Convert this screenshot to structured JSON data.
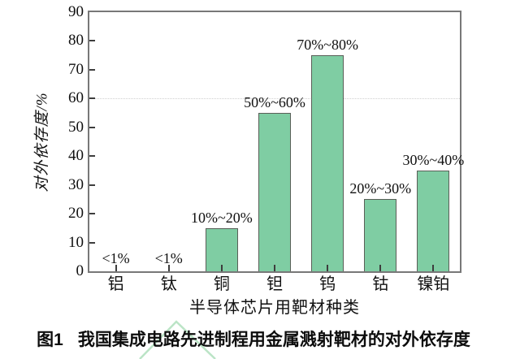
{
  "figure": {
    "caption": {
      "prefix": "图1",
      "text": "我国集成电路先进制程用金属溅射靶材的对外依存度"
    }
  },
  "chart_data": {
    "type": "bar",
    "categories": [
      "铝",
      "钛",
      "铜",
      "钽",
      "钨",
      "钴",
      "镍铂"
    ],
    "values": [
      0,
      0,
      15,
      55,
      75,
      25,
      35
    ],
    "value_range_labels": [
      "<1%",
      "<1%",
      "10%~20%",
      "50%~60%",
      "70%~80%",
      "20%~30%",
      "30%~40%"
    ],
    "title": "",
    "xlabel": "半导体芯片用靶材种类",
    "ylabel": "对外依存度/%",
    "ylim": [
      0,
      90
    ],
    "ytick_step": 10,
    "legend": "none",
    "grid": "single dotted horizontal line",
    "gridline_y": 60,
    "bar_color": "#7fcda3",
    "bar_border_color": "#5a5f58"
  }
}
